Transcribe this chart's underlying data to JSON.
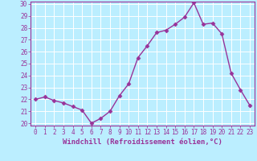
{
  "hours": [
    0,
    1,
    2,
    3,
    4,
    5,
    6,
    7,
    8,
    9,
    10,
    11,
    12,
    13,
    14,
    15,
    16,
    17,
    18,
    19,
    20,
    21,
    22,
    23
  ],
  "values": [
    22.0,
    22.2,
    21.9,
    21.7,
    21.4,
    21.1,
    20.0,
    20.4,
    21.0,
    22.3,
    23.3,
    25.5,
    26.5,
    27.6,
    27.8,
    28.3,
    28.9,
    30.1,
    28.3,
    28.4,
    27.5,
    24.2,
    22.8,
    21.5
  ],
  "line_color": "#993399",
  "marker": "D",
  "markersize": 2.5,
  "linewidth": 1.0,
  "bg_color": "#bbeeff",
  "grid_color": "#ffffff",
  "xlabel": "Windchill (Refroidissement éolien,°C)",
  "ylabel": "",
  "ylim": [
    20,
    30
  ],
  "xlim": [
    -0.5,
    23.5
  ],
  "yticks": [
    20,
    21,
    22,
    23,
    24,
    25,
    26,
    27,
    28,
    29,
    30
  ],
  "xticks": [
    0,
    1,
    2,
    3,
    4,
    5,
    6,
    7,
    8,
    9,
    10,
    11,
    12,
    13,
    14,
    15,
    16,
    17,
    18,
    19,
    20,
    21,
    22,
    23
  ],
  "tick_color": "#993399",
  "label_fontsize": 6.5,
  "tick_fontsize": 5.5,
  "spine_color": "#993399"
}
